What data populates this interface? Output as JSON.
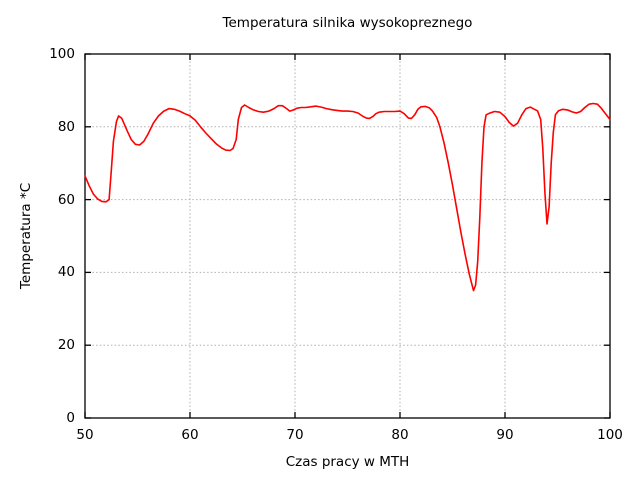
{
  "window": {
    "background": "#ffffff"
  },
  "colors": {
    "axis": "#000000",
    "grid": "#b0b0b0",
    "text": "#000000",
    "series_red": "#ff0000"
  },
  "chart_data": {
    "type": "line",
    "title": "Temperatura silnika wysokopreznego",
    "xlabel": "Czas pracy w MTH",
    "ylabel": "Temperatura *C",
    "xlim": [
      50,
      100
    ],
    "ylim": [
      0,
      100
    ],
    "xticks": [
      50,
      60,
      70,
      80,
      90,
      100
    ],
    "yticks": [
      0,
      20,
      40,
      60,
      80,
      100
    ],
    "grid": "dotted interior gridlines, mirrored inward ticks on all borders",
    "legend_position": "none",
    "series": [
      {
        "name": "temperatura-silnika",
        "color": "#ff0000",
        "points": [
          [
            50,
            66.5
          ],
          [
            50.4,
            63.8
          ],
          [
            50.8,
            61.5
          ],
          [
            51.2,
            60.2
          ],
          [
            51.6,
            59.5
          ],
          [
            52,
            59.4
          ],
          [
            52.3,
            60
          ],
          [
            52.5,
            68
          ],
          [
            52.7,
            76
          ],
          [
            53,
            81.5
          ],
          [
            53.2,
            83
          ],
          [
            53.5,
            82.3
          ],
          [
            54,
            79
          ],
          [
            54.4,
            76.5
          ],
          [
            54.8,
            75.2
          ],
          [
            55.2,
            75
          ],
          [
            55.6,
            76
          ],
          [
            56,
            78
          ],
          [
            56.5,
            81
          ],
          [
            57,
            83
          ],
          [
            57.5,
            84.3
          ],
          [
            58,
            85
          ],
          [
            58.5,
            84.8
          ],
          [
            59,
            84.3
          ],
          [
            59.5,
            83.6
          ],
          [
            60,
            83
          ],
          [
            60.5,
            81.8
          ],
          [
            61,
            80
          ],
          [
            61.5,
            78.3
          ],
          [
            62,
            76.8
          ],
          [
            62.5,
            75.3
          ],
          [
            63,
            74.2
          ],
          [
            63.4,
            73.6
          ],
          [
            63.8,
            73.5
          ],
          [
            64.1,
            74
          ],
          [
            64.4,
            76.5
          ],
          [
            64.6,
            82
          ],
          [
            64.9,
            85.3
          ],
          [
            65.2,
            86
          ],
          [
            65.6,
            85.3
          ],
          [
            66,
            84.7
          ],
          [
            66.5,
            84.2
          ],
          [
            67,
            84
          ],
          [
            67.5,
            84.3
          ],
          [
            68,
            85
          ],
          [
            68.4,
            85.8
          ],
          [
            68.8,
            85.8
          ],
          [
            69.2,
            85
          ],
          [
            69.5,
            84.3
          ],
          [
            69.8,
            84.6
          ],
          [
            70.2,
            85.1
          ],
          [
            70.6,
            85.3
          ],
          [
            71,
            85.3
          ],
          [
            71.5,
            85.5
          ],
          [
            72,
            85.7
          ],
          [
            72.5,
            85.4
          ],
          [
            73,
            85
          ],
          [
            73.5,
            84.7
          ],
          [
            74,
            84.5
          ],
          [
            74.5,
            84.3
          ],
          [
            75,
            84.3
          ],
          [
            75.5,
            84.2
          ],
          [
            76,
            83.8
          ],
          [
            76.4,
            83
          ],
          [
            76.8,
            82.4
          ],
          [
            77.1,
            82.3
          ],
          [
            77.4,
            82.8
          ],
          [
            77.7,
            83.6
          ],
          [
            78,
            84
          ],
          [
            78.5,
            84.2
          ],
          [
            79,
            84.2
          ],
          [
            79.5,
            84.2
          ],
          [
            80,
            84.3
          ],
          [
            80.4,
            83.6
          ],
          [
            80.8,
            82.4
          ],
          [
            81.1,
            82.3
          ],
          [
            81.4,
            83.3
          ],
          [
            81.7,
            84.8
          ],
          [
            82,
            85.5
          ],
          [
            82.4,
            85.6
          ],
          [
            82.8,
            85.2
          ],
          [
            83.1,
            84.3
          ],
          [
            83.5,
            82.5
          ],
          [
            83.8,
            80
          ],
          [
            84.2,
            75.5
          ],
          [
            84.6,
            70
          ],
          [
            85,
            64
          ],
          [
            85.4,
            57.5
          ],
          [
            85.8,
            51
          ],
          [
            86.2,
            45
          ],
          [
            86.6,
            39.5
          ],
          [
            87,
            35
          ],
          [
            87.2,
            36.5
          ],
          [
            87.4,
            43
          ],
          [
            87.6,
            55
          ],
          [
            87.8,
            70
          ],
          [
            88,
            80
          ],
          [
            88.2,
            83.3
          ],
          [
            88.5,
            83.7
          ],
          [
            89,
            84.2
          ],
          [
            89.5,
            84
          ],
          [
            90,
            82.8
          ],
          [
            90.4,
            81.2
          ],
          [
            90.8,
            80.2
          ],
          [
            91.2,
            81
          ],
          [
            91.6,
            83.3
          ],
          [
            92,
            85
          ],
          [
            92.4,
            85.4
          ],
          [
            92.8,
            84.8
          ],
          [
            93.1,
            84.4
          ],
          [
            93.4,
            82
          ],
          [
            93.6,
            74
          ],
          [
            93.8,
            62
          ],
          [
            94,
            53.3
          ],
          [
            94.2,
            58
          ],
          [
            94.4,
            70
          ],
          [
            94.6,
            78.5
          ],
          [
            94.8,
            83.3
          ],
          [
            95.1,
            84.4
          ],
          [
            95.5,
            84.8
          ],
          [
            96,
            84.6
          ],
          [
            96.4,
            84.1
          ],
          [
            96.8,
            83.8
          ],
          [
            97.2,
            84.2
          ],
          [
            97.6,
            85.3
          ],
          [
            98,
            86.2
          ],
          [
            98.4,
            86.4
          ],
          [
            98.8,
            86.2
          ],
          [
            99.2,
            85
          ],
          [
            99.6,
            83.5
          ],
          [
            100,
            82
          ]
        ]
      }
    ]
  }
}
